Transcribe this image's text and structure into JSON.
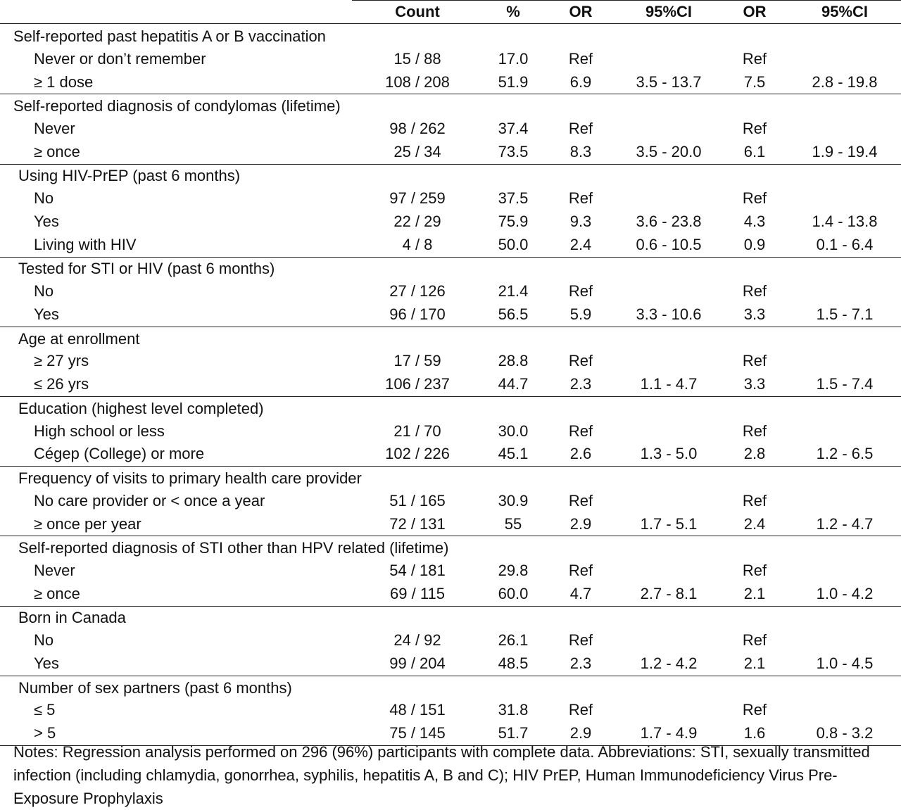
{
  "header": [
    "Count",
    "%",
    "OR",
    "95%CI",
    "OR",
    "95%CI"
  ],
  "groups": [
    {
      "label": "Self-reported past hepatitis A or B vaccination",
      "indent": 0,
      "rows": [
        {
          "label": "Never or don’t remember",
          "count": "15 / 88",
          "pct": "17.0",
          "or1": "Ref",
          "ci1": "",
          "or2": "Ref",
          "ci2": ""
        },
        {
          "label": "≥ 1 dose",
          "count": "108 / 208",
          "pct": "51.9",
          "or1": "6.9",
          "ci1": "3.5 - 13.7",
          "or2": "7.5",
          "ci2": "2.8 - 19.8"
        }
      ]
    },
    {
      "label": "Self-reported diagnosis of condylomas (lifetime)",
      "indent": 0,
      "rows": [
        {
          "label": "Never",
          "count": "98 / 262",
          "pct": "37.4",
          "or1": "Ref",
          "ci1": "",
          "or2": "Ref",
          "ci2": ""
        },
        {
          "label": "≥ once",
          "count": "25 / 34",
          "pct": "73.5",
          "or1": "8.3",
          "ci1": "3.5 - 20.0",
          "or2": "6.1",
          "ci2": "1.9 - 19.4"
        }
      ]
    },
    {
      "label": "Using HIV-PrEP (past 6 months)",
      "indent": 1,
      "rows": [
        {
          "label": "No",
          "count": "97 / 259",
          "pct": "37.5",
          "or1": "Ref",
          "ci1": "",
          "or2": "Ref",
          "ci2": ""
        },
        {
          "label": "Yes",
          "count": "22 / 29",
          "pct": "75.9",
          "or1": "9.3",
          "ci1": "3.6 - 23.8",
          "or2": "4.3",
          "ci2": "1.4 - 13.8"
        },
        {
          "label": "Living with HIV",
          "count": "4 / 8",
          "pct": "50.0",
          "or1": "2.4",
          "ci1": "0.6 - 10.5",
          "or2": "0.9",
          "ci2": "0.1 - 6.4"
        }
      ]
    },
    {
      "label": "Tested for STI or HIV (past 6 months)",
      "indent": 1,
      "rows": [
        {
          "label": "No",
          "count": "27 / 126",
          "pct": "21.4",
          "or1": "Ref",
          "ci1": "",
          "or2": "Ref",
          "ci2": ""
        },
        {
          "label": "Yes",
          "count": "96 / 170",
          "pct": "56.5",
          "or1": "5.9",
          "ci1": "3.3 - 10.6",
          "or2": "3.3",
          "ci2": "1.5 - 7.1"
        }
      ]
    },
    {
      "label": "Age at enrollment",
      "indent": 1,
      "rows": [
        {
          "label": "≥ 27 yrs",
          "count": "17 / 59",
          "pct": "28.8",
          "or1": "Ref",
          "ci1": "",
          "or2": "Ref",
          "ci2": ""
        },
        {
          "label": "≤ 26 yrs",
          "count": "106 / 237",
          "pct": "44.7",
          "or1": "2.3",
          "ci1": "1.1 - 4.7",
          "or2": "3.3",
          "ci2": "1.5 - 7.4"
        }
      ]
    },
    {
      "label": "Education (highest level completed)",
      "indent": 1,
      "rows": [
        {
          "label": "High school or less",
          "count": "21 / 70",
          "pct": "30.0",
          "or1": "Ref",
          "ci1": "",
          "or2": "Ref",
          "ci2": ""
        },
        {
          "label": "Cégep (College) or more",
          "count": "102 / 226",
          "pct": "45.1",
          "or1": "2.6",
          "ci1": "1.3 - 5.0",
          "or2": "2.8",
          "ci2": "1.2 - 6.5"
        }
      ]
    },
    {
      "label": "Frequency of visits to primary health care provider",
      "indent": 1,
      "rows": [
        {
          "label": "No care provider or < once a year",
          "count": "51 / 165",
          "pct": "30.9",
          "or1": "Ref",
          "ci1": "",
          "or2": "Ref",
          "ci2": ""
        },
        {
          "label": "≥ once per year",
          "count": "72 / 131",
          "pct": "55",
          "or1": "2.9",
          "ci1": "1.7 - 5.1",
          "or2": "2.4",
          "ci2": "1.2 - 4.7"
        }
      ]
    },
    {
      "label": "Self-reported diagnosis of STI other than HPV related (lifetime)",
      "indent": 1,
      "rows": [
        {
          "label": "Never",
          "count": "54 / 181",
          "pct": "29.8",
          "or1": "Ref",
          "ci1": "",
          "or2": "Ref",
          "ci2": ""
        },
        {
          "label": "≥ once",
          "count": "69 / 115",
          "pct": "60.0",
          "or1": "4.7",
          "ci1": "2.7 - 8.1",
          "or2": "2.1",
          "ci2": "1.0 - 4.2"
        }
      ]
    },
    {
      "label": "Born in Canada",
      "indent": 1,
      "rows": [
        {
          "label": "No",
          "count": "24 / 92",
          "pct": "26.1",
          "or1": "Ref",
          "ci1": "",
          "or2": "Ref",
          "ci2": ""
        },
        {
          "label": "Yes",
          "count": "99 / 204",
          "pct": "48.5",
          "or1": "2.3",
          "ci1": "1.2 - 4.2",
          "or2": "2.1",
          "ci2": "1.0 - 4.5"
        }
      ]
    },
    {
      "label": "Number of sex partners (past 6 months)",
      "indent": 1,
      "rows": [
        {
          "label": "≤ 5",
          "count": "48 / 151",
          "pct": "31.8",
          "or1": "Ref",
          "ci1": "",
          "or2": "Ref",
          "ci2": ""
        },
        {
          "label": "> 5",
          "count": "75 / 145",
          "pct": "51.7",
          "or1": "2.9",
          "ci1": "1.7 - 4.9",
          "or2": "1.6",
          "ci2": "0.8 - 3.2"
        }
      ]
    }
  ],
  "notes": "Notes: Regression analysis performed on 296 (96%) participants with complete data. Abbreviations: STI, sexually transmitted infection (including chlamydia, gonorrhea, syphilis, hepatitis A, B and C); HIV PrEP, Human Immunodeficiency Virus Pre-Exposure Prophylaxis"
}
